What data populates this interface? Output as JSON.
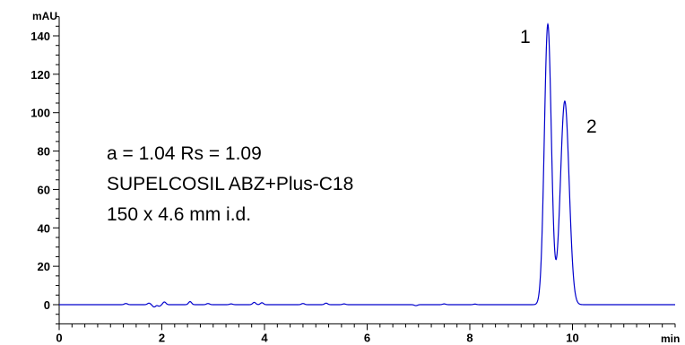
{
  "chart_data": {
    "type": "line",
    "y_unit": "mAU",
    "x_unit": "min",
    "xlim": [
      0,
      12.0
    ],
    "ylim": [
      -10,
      150
    ],
    "x_ticks": [
      0,
      2,
      4,
      6,
      8,
      10
    ],
    "y_ticks": [
      0,
      20,
      40,
      60,
      80,
      100,
      120,
      140
    ],
    "line_color": "#0000cc",
    "annotations": {
      "line1": "a = 1.04  Rs = 1.09",
      "line2": "SUPELCOSIL ABZ+Plus-C18",
      "line3": "150 x 4.6 mm i.d."
    },
    "peaks": [
      {
        "label": "1",
        "x": 9.52,
        "y": 146
      },
      {
        "label": "2",
        "x": 9.85,
        "y": 112
      }
    ],
    "baseline_noise": [
      [
        1.3,
        0.6
      ],
      [
        1.75,
        0.8
      ],
      [
        1.85,
        -1.2
      ],
      [
        1.95,
        -0.8
      ],
      [
        2.05,
        1.4
      ],
      [
        2.55,
        1.6
      ],
      [
        2.9,
        0.6
      ],
      [
        3.35,
        0.4
      ],
      [
        3.8,
        1.2
      ],
      [
        3.95,
        1.0
      ],
      [
        4.75,
        0.6
      ],
      [
        5.2,
        0.8
      ],
      [
        5.55,
        0.4
      ],
      [
        6.95,
        -0.5
      ],
      [
        7.5,
        0.4
      ],
      [
        8.1,
        0.3
      ]
    ]
  }
}
